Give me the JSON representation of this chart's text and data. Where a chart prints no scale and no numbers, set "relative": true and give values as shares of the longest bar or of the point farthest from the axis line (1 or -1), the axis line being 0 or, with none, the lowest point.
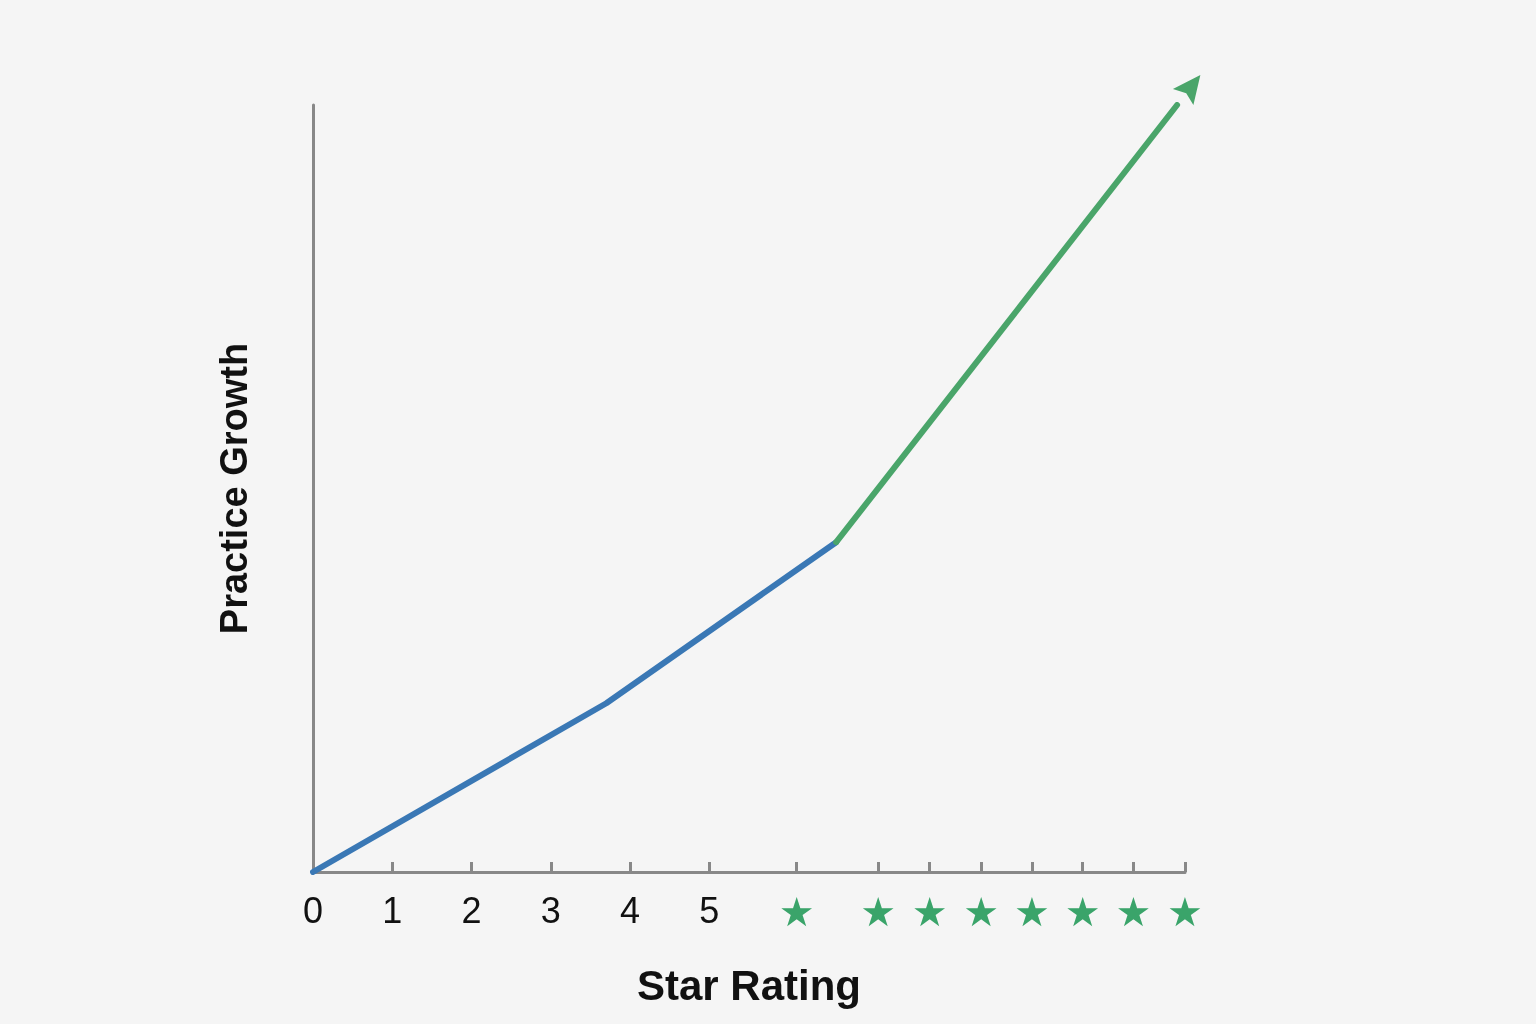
{
  "chart_data": {
    "type": "line",
    "relative": true,
    "xlabel": "Star Rating",
    "ylabel": "Practice Growth",
    "xlim": [
      0,
      11
    ],
    "xticks": [
      0,
      1,
      2,
      3,
      4,
      5,
      {
        "value": 6.1,
        "label": "★"
      },
      {
        "value": 7.13,
        "label": "★"
      },
      {
        "value": 7.78,
        "label": "★"
      },
      {
        "value": 8.43,
        "label": "★"
      },
      {
        "value": 9.07,
        "label": "★"
      },
      {
        "value": 9.71,
        "label": "★"
      },
      {
        "value": 10.35,
        "label": "★"
      },
      {
        "value": 11,
        "label": "★"
      }
    ],
    "series": [
      {
        "color": "#3a78b5",
        "x": [
          0,
          3.7,
          6.6
        ],
        "values": [
          0,
          0.22,
          0.43
        ]
      },
      {
        "color": "#4aa56a",
        "x": [
          6.6,
          10.9
        ],
        "values": [
          0.43,
          1
        ]
      }
    ]
  }
}
